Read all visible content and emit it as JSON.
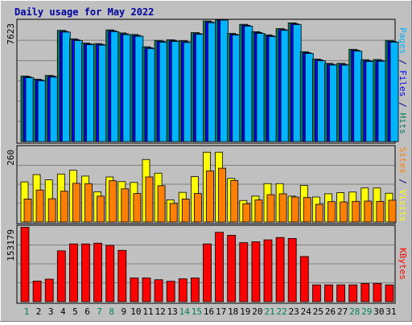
{
  "chart_data": {
    "type": "bar",
    "title": "Daily usage for May 2022",
    "categories": [
      "1",
      "2",
      "3",
      "4",
      "5",
      "6",
      "7",
      "8",
      "9",
      "10",
      "11",
      "12",
      "13",
      "14",
      "15",
      "16",
      "17",
      "18",
      "19",
      "20",
      "21",
      "22",
      "23",
      "24",
      "25",
      "26",
      "27",
      "28",
      "29",
      "30",
      "31"
    ],
    "weekend_days": [
      "1",
      "7",
      "8",
      "14",
      "15",
      "21",
      "22",
      "28",
      "29"
    ],
    "panels": [
      {
        "name": "hits-files-pages",
        "ymax_label": "7623",
        "ylim": [
          0,
          7623
        ],
        "axis_label_parts": [
          {
            "text": "Pages",
            "color": "#00b3ff"
          },
          {
            "text": " / ",
            "color": "#000080"
          },
          {
            "text": "Files",
            "color": "#0000ff"
          },
          {
            "text": " / ",
            "color": "#000080"
          },
          {
            "text": "Hits",
            "color": "#00805c"
          }
        ],
        "series": [
          {
            "name": "Hits",
            "color": "#00805c",
            "values": [
              4110,
              3920,
              4150,
              6980,
              6450,
              6180,
              6150,
              7010,
              6820,
              6720,
              5950,
              6350,
              6390,
              6330,
              6840,
              7570,
              7750,
              6790,
              7360,
              6900,
              6700,
              7090,
              7450,
              5640,
              5180,
              4910,
              4910,
              5790,
              5140,
              5150,
              6350
            ]
          },
          {
            "name": "Files",
            "color": "#0000ff",
            "values": [
              4060,
              3870,
              4100,
              6920,
              6390,
              6130,
              6100,
              6950,
              6760,
              6660,
              5890,
              6290,
              6330,
              6270,
              6780,
              7510,
              7690,
              6730,
              7300,
              6840,
              6640,
              7030,
              7390,
              5580,
              5120,
              4850,
              4850,
              5730,
              5080,
              5090,
              6290
            ]
          },
          {
            "name": "Pages",
            "color": "#00b3ff",
            "values": [
              4010,
              3820,
              4050,
              6870,
              6340,
              6080,
              6050,
              6900,
              6710,
              6610,
              5840,
              6240,
              6280,
              6220,
              6730,
              7460,
              7640,
              6680,
              7250,
              6790,
              6590,
              6980,
              7340,
              5530,
              5070,
              4800,
              4800,
              5680,
              5030,
              5040,
              6240
            ]
          }
        ]
      },
      {
        "name": "visits-sites",
        "ymax_label": "260",
        "ylim": [
          0,
          260
        ],
        "axis_label_parts": [
          {
            "text": "Sites",
            "color": "#ff8000"
          },
          {
            "text": " / ",
            "color": "#000080"
          },
          {
            "text": "Visits",
            "color": "#ffff00"
          }
        ],
        "series": [
          {
            "name": "Visits",
            "color": "#ffff00",
            "values": [
              138,
              163,
              145,
              165,
              178,
              158,
              104,
              155,
              139,
              136,
              215,
              168,
              76,
              102,
              156,
              240,
              240,
              150,
              74,
              89,
              132,
              132,
              89,
              126,
              86,
              97,
              101,
              103,
              117,
              117,
              99
            ]
          },
          {
            "name": "Sites",
            "color": "#ff8000",
            "values": [
              79,
              110,
              80,
              106,
              133,
              132,
              89,
              142,
              114,
              98,
              155,
              125,
              64,
              79,
              98,
              176,
              185,
              143,
              63,
              76,
              94,
              97,
              86,
              84,
              61,
              70,
              69,
              71,
              72,
              71,
              75
            ]
          }
        ]
      },
      {
        "name": "kbytes",
        "ymax_label": "153179",
        "ylim": [
          0,
          153179
        ],
        "axis_label_parts": [
          {
            "text": "KBytes",
            "color": "#ff0000"
          }
        ],
        "series": [
          {
            "name": "KBytes",
            "color": "#ff0000",
            "values": [
              150900,
              41800,
              45600,
              103000,
              117000,
              117000,
              118500,
              114000,
              104000,
              48000,
              48000,
              44500,
              41400,
              46300,
              48000,
              117000,
              140500,
              134500,
              119500,
              121300,
              125300,
              130000,
              128100,
              91500,
              34000,
              34000,
              34000,
              34000,
              36900,
              36900,
              34000
            ]
          }
        ]
      }
    ]
  }
}
